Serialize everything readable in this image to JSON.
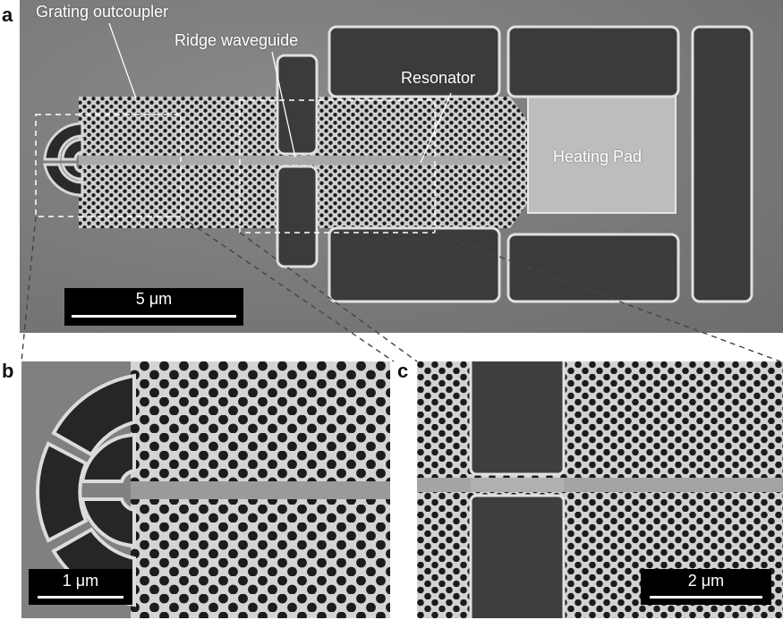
{
  "figure": {
    "panels": [
      {
        "letter": "a"
      },
      {
        "letter": "b"
      },
      {
        "letter": "c"
      }
    ],
    "annotations": {
      "grating_outcoupler": "Grating outcoupler",
      "ridge_waveguide": "Ridge waveguide",
      "resonator": "Resonator",
      "heating_pad": "Heating Pad"
    },
    "scalebars": {
      "a": "5 μm",
      "b": "1 μm",
      "c": "2 μm"
    }
  },
  "colors": {
    "substrate": "#7d7d7d",
    "membrane": "#c9c9c9",
    "trench": "#3a3a3a",
    "hole": "#1e1e1e"
  }
}
